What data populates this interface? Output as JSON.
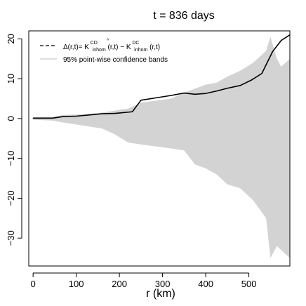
{
  "chart_data": {
    "type": "area",
    "title": "t = 836 days",
    "xlabel": "r (km)",
    "ylabel": "",
    "xlim": [
      -10,
      595
    ],
    "ylim": [
      -37,
      22
    ],
    "xticks": [
      0,
      100,
      200,
      300,
      400,
      500
    ],
    "yticks": [
      -30,
      -20,
      -10,
      0,
      10,
      20
    ],
    "grid": false,
    "legend_position": "top-left",
    "legend": {
      "line_label": {
        "prefix": "Δ(r,t)= ",
        "k1": "K",
        "k1_hat": "^",
        "k1_sup": "CD",
        "k1_sub": "inhom",
        "k1_args": "(r,t)",
        "minus": "−",
        "k2": "K",
        "k2_sup": "DC",
        "k2_sub": "inhom",
        "k2_args": "(r,t)"
      },
      "band_label": "95% point-wise confidence bands"
    },
    "band": {
      "name": "95% point-wise confidence bands",
      "color": "#d3d3d3",
      "x": [
        0,
        45,
        70,
        100,
        130,
        160,
        190,
        220,
        250,
        285,
        320,
        350,
        375,
        400,
        425,
        450,
        480,
        510,
        540,
        550,
        565,
        575,
        595
      ],
      "upper": [
        0.3,
        0.4,
        0.9,
        1.0,
        1.2,
        1.5,
        2.0,
        2.5,
        4.0,
        4.5,
        5.0,
        6.5,
        7.5,
        8.5,
        9.0,
        10.5,
        12.0,
        14.0,
        17.0,
        20.5,
        15.0,
        13.0,
        15.0
      ],
      "lower": [
        -0.3,
        -0.5,
        -1.0,
        -1.5,
        -2.0,
        -2.5,
        -4.0,
        -6.0,
        -6.5,
        -7.0,
        -7.5,
        -8.0,
        -11.5,
        -12.5,
        -14.0,
        -16.5,
        -17.5,
        -20.5,
        -25.0,
        -35.0,
        -32.0,
        -33.0,
        -35.0
      ]
    },
    "series": [
      {
        "color": "#000000",
        "x": [
          0,
          45,
          70,
          100,
          130,
          160,
          190,
          230,
          250,
          285,
          320,
          350,
          375,
          400,
          425,
          450,
          480,
          505,
          530,
          555,
          575,
          595
        ],
        "y": [
          0.1,
          0.1,
          0.5,
          0.6,
          0.9,
          1.2,
          1.3,
          1.7,
          4.6,
          5.2,
          5.8,
          6.4,
          6.1,
          6.3,
          6.9,
          7.6,
          8.3,
          9.6,
          11.3,
          16.8,
          19.6,
          21.0
        ]
      }
    ]
  }
}
